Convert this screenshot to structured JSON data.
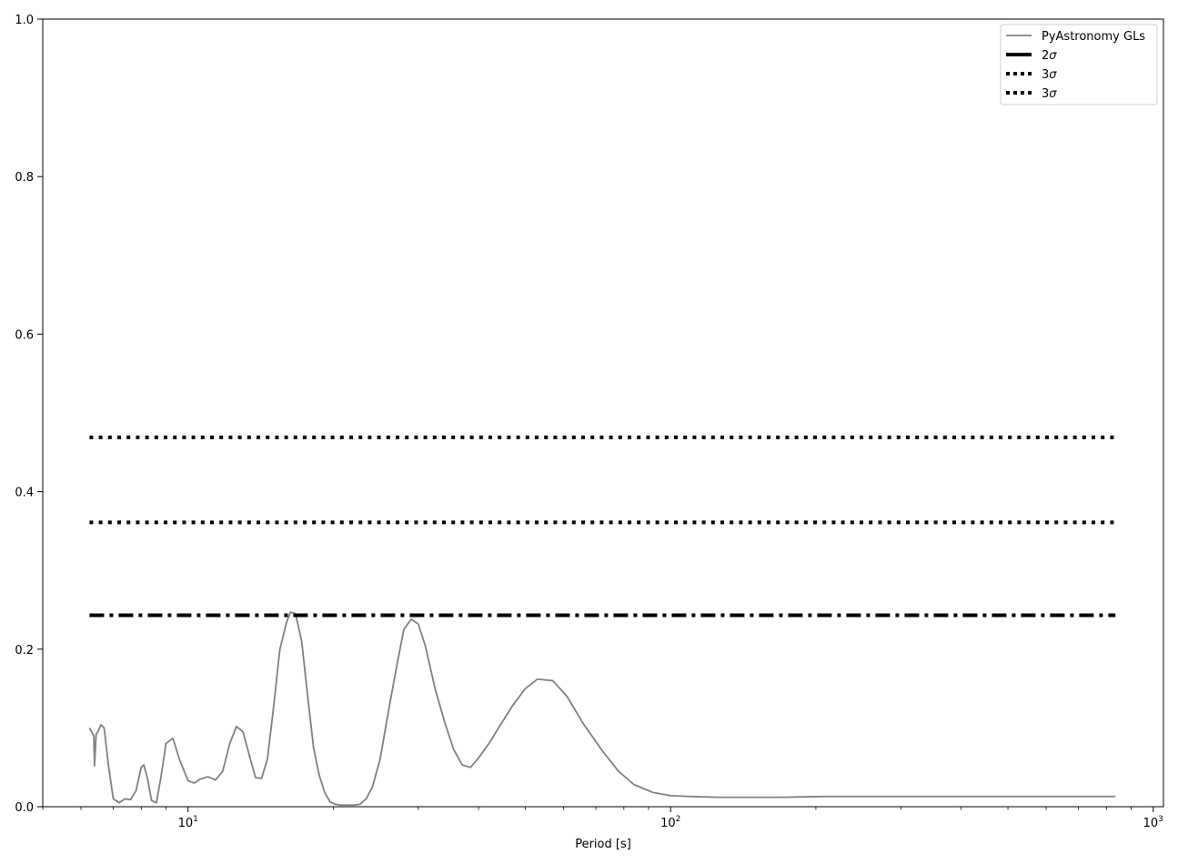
{
  "chart_data": {
    "type": "line",
    "title": "",
    "xlabel": "Period [s]",
    "ylabel": "",
    "xscale": "log",
    "xlim": [
      5,
      1050
    ],
    "ylim": [
      0,
      1.0
    ],
    "grid": false,
    "legend_position": "top-right",
    "x_ticks": [
      {
        "value": 10,
        "base": "10",
        "exp": "1"
      },
      {
        "value": 100,
        "base": "10",
        "exp": "2"
      },
      {
        "value": 1000,
        "base": "10",
        "exp": "3"
      }
    ],
    "y_ticks": [
      {
        "value": 0.0,
        "label": "0.0"
      },
      {
        "value": 0.2,
        "label": "0.2"
      },
      {
        "value": 0.4,
        "label": "0.4"
      },
      {
        "value": 0.6,
        "label": "0.6"
      },
      {
        "value": 0.8,
        "label": "0.8"
      },
      {
        "value": 1.0,
        "label": "1.0"
      }
    ],
    "series": [
      {
        "name": "PyAstronomy GLs",
        "style": "solid",
        "color": "#808080",
        "x": [
          6.25,
          6.38,
          6.4,
          6.45,
          6.5,
          6.6,
          6.7,
          6.85,
          7.0,
          7.2,
          7.4,
          7.6,
          7.8,
          8.0,
          8.1,
          8.25,
          8.4,
          8.6,
          8.8,
          9.0,
          9.3,
          9.6,
          10.0,
          10.3,
          10.6,
          11.0,
          11.4,
          11.8,
          12.2,
          12.6,
          13.0,
          13.4,
          13.8,
          14.2,
          14.6,
          15.0,
          15.5,
          16.0,
          16.3,
          16.7,
          17.2,
          17.7,
          18.2,
          18.7,
          19.2,
          19.7,
          20.2,
          20.7,
          21.3,
          22.0,
          22.7,
          23.4,
          24.1,
          25.0,
          26.0,
          27.0,
          28.0,
          29.0,
          30.0,
          31.0,
          32.5,
          34.0,
          35.5,
          37.0,
          38.5,
          40.0,
          42.0,
          44.0,
          47.0,
          50.0,
          53.0,
          57.0,
          61.0,
          66.0,
          72.0,
          78.0,
          84.0,
          92.0,
          100.0,
          110.0,
          125.0,
          145.0,
          170.0,
          210.0,
          260.0,
          320.0,
          400.0,
          500.0,
          600.0,
          700.0,
          800.0,
          835.0
        ],
        "y": [
          0.1,
          0.09,
          0.052,
          0.092,
          0.095,
          0.104,
          0.1,
          0.05,
          0.01,
          0.005,
          0.01,
          0.009,
          0.02,
          0.05,
          0.053,
          0.035,
          0.008,
          0.005,
          0.04,
          0.08,
          0.087,
          0.06,
          0.033,
          0.03,
          0.035,
          0.038,
          0.034,
          0.045,
          0.08,
          0.102,
          0.095,
          0.065,
          0.037,
          0.036,
          0.06,
          0.12,
          0.2,
          0.234,
          0.247,
          0.245,
          0.21,
          0.14,
          0.075,
          0.04,
          0.018,
          0.006,
          0.003,
          0.002,
          0.002,
          0.002,
          0.003,
          0.01,
          0.025,
          0.06,
          0.12,
          0.175,
          0.225,
          0.238,
          0.232,
          0.205,
          0.15,
          0.108,
          0.073,
          0.053,
          0.05,
          0.062,
          0.08,
          0.1,
          0.128,
          0.15,
          0.162,
          0.16,
          0.14,
          0.105,
          0.072,
          0.045,
          0.028,
          0.018,
          0.014,
          0.013,
          0.012,
          0.012,
          0.012,
          0.013,
          0.013,
          0.013,
          0.013,
          0.013,
          0.013,
          0.013,
          0.013,
          0.013
        ]
      },
      {
        "name": "2σ",
        "legend_main": "2",
        "legend_sym": "σ",
        "style": "dashdot",
        "color": "#000000",
        "x": [
          6.25,
          835.0
        ],
        "y": [
          0.243,
          0.243
        ]
      },
      {
        "name": "3σ",
        "legend_main": "3",
        "legend_sym": "σ",
        "style": "dotted",
        "color": "#000000",
        "x": [
          6.25,
          835.0
        ],
        "y": [
          0.361,
          0.361
        ]
      },
      {
        "name": "3σ",
        "legend_main": "3",
        "legend_sym": "σ",
        "style": "dotted",
        "color": "#000000",
        "x": [
          6.25,
          835.0
        ],
        "y": [
          0.469,
          0.469
        ]
      }
    ]
  }
}
